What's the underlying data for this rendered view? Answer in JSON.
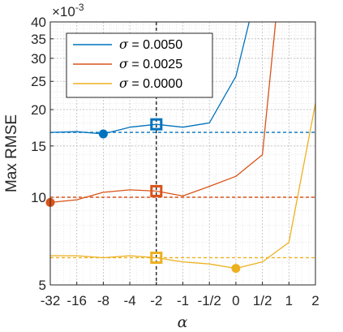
{
  "chart_data": {
    "type": "line",
    "ylabel": "Max RMSE",
    "xlabel": "α",
    "yscale": "log",
    "ylim": [
      5,
      40
    ],
    "y_multiplier": {
      "base": "×10",
      "exponent": "-3"
    },
    "x_ticks": [
      {
        "pos": 0,
        "label": "-32"
      },
      {
        "pos": 1,
        "label": "-16"
      },
      {
        "pos": 2,
        "label": "-8"
      },
      {
        "pos": 3,
        "label": "-4"
      },
      {
        "pos": 4,
        "label": "-2"
      },
      {
        "pos": 5,
        "label": "-1"
      },
      {
        "pos": 6,
        "label": "-1/2"
      },
      {
        "pos": 7,
        "label": "0"
      },
      {
        "pos": 8,
        "label": "1/2"
      },
      {
        "pos": 9,
        "label": "1"
      },
      {
        "pos": 10,
        "label": "2"
      }
    ],
    "y_ticks": [
      {
        "value": 5,
        "label": "5"
      },
      {
        "value": 10,
        "label": "10"
      },
      {
        "value": 15,
        "label": "15"
      },
      {
        "value": 20,
        "label": "20"
      },
      {
        "value": 25,
        "label": "25"
      },
      {
        "value": 30,
        "label": "30"
      },
      {
        "value": 35,
        "label": "35"
      },
      {
        "value": 40,
        "label": "40"
      }
    ],
    "grid": true,
    "legend_position": "top-left",
    "selected_x_pos": 4,
    "series": [
      {
        "name_symbol": "σ",
        "name_value": " = 0.0050",
        "color": "#0072BD",
        "x": [
          0,
          1,
          2,
          3,
          4,
          5,
          6,
          7,
          7.5
        ],
        "y": [
          16.7,
          16.8,
          16.5,
          17.4,
          17.8,
          17.4,
          18.0,
          26.0,
          40
        ],
        "min_x": 2,
        "min_y": 16.5,
        "selected_y": 17.8,
        "baseline_y": 16.7
      },
      {
        "name_symbol": "σ",
        "name_value": " = 0.0025",
        "color": "#D95319",
        "x": [
          0,
          1,
          2,
          3,
          4,
          5,
          6,
          7,
          8,
          8.5
        ],
        "y": [
          9.6,
          9.8,
          10.4,
          10.6,
          10.5,
          10.1,
          10.9,
          11.8,
          14.0,
          40
        ],
        "min_x": 0,
        "min_y": 9.6,
        "selected_y": 10.5,
        "baseline_y": 10.0
      },
      {
        "name_symbol": "σ",
        "name_value": " = 0.0000",
        "color": "#EDB120",
        "x": [
          0,
          1,
          2,
          3,
          4,
          5,
          6,
          7,
          8,
          9,
          10
        ],
        "y": [
          6.3,
          6.3,
          6.2,
          6.3,
          6.2,
          6.0,
          5.9,
          5.7,
          6.0,
          7.0,
          21.0
        ],
        "min_x": 7,
        "min_y": 5.7,
        "selected_y": 6.2,
        "baseline_y": 6.2
      }
    ]
  }
}
